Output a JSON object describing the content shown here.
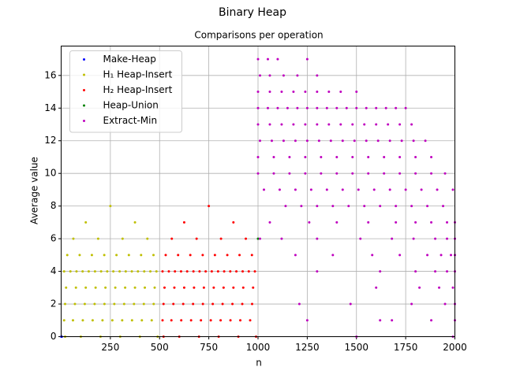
{
  "chart_data": {
    "type": "scatter",
    "title": "Binary Heap",
    "subtitle": "Comparisons per operation",
    "x_label": "n",
    "y_label": "Average value",
    "xlim": [
      0,
      2000
    ],
    "ylim": [
      0,
      17.8
    ],
    "xticks": [
      250,
      500,
      750,
      1000,
      1250,
      1500,
      1750,
      2000
    ],
    "yticks": [
      0,
      2,
      4,
      6,
      8,
      10,
      12,
      14,
      16
    ],
    "grid": true,
    "legend": "upper left",
    "series": [
      {
        "name": "Make-Heap",
        "color": "#0000ff",
        "x": [
          1,
          2,
          3
        ],
        "values": [
          0,
          0,
          0
        ]
      },
      {
        "name": "H₁ Heap-Insert",
        "color": "#bfbf00",
        "x": [
          20,
          100,
          200,
          300,
          400,
          490,
          15,
          60,
          110,
          160,
          210,
          260,
          310,
          360,
          410,
          460,
          20,
          70,
          120,
          170,
          220,
          270,
          320,
          370,
          420,
          470,
          25,
          75,
          125,
          175,
          225,
          275,
          325,
          375,
          425,
          475,
          15,
          47,
          78,
          109,
          140,
          172,
          203,
          234,
          265,
          297,
          328,
          359,
          390,
          422,
          453,
          484,
          31,
          94,
          156,
          219,
          281,
          344,
          406,
          469,
          62,
          188,
          312,
          438,
          125,
          375,
          250
        ],
        "values": [
          0,
          0,
          0,
          0,
          0,
          0,
          1,
          1,
          1,
          1,
          1,
          1,
          1,
          1,
          1,
          1,
          2,
          2,
          2,
          2,
          2,
          2,
          2,
          2,
          2,
          2,
          3,
          3,
          3,
          3,
          3,
          3,
          3,
          3,
          3,
          3,
          4,
          4,
          4,
          4,
          4,
          4,
          4,
          4,
          4,
          4,
          4,
          4,
          4,
          4,
          4,
          4,
          5,
          5,
          5,
          5,
          5,
          5,
          5,
          5,
          6,
          6,
          6,
          6,
          7,
          7,
          8
        ]
      },
      {
        "name": "H₂ Heap-Insert",
        "color": "#ff0000",
        "x": [
          520,
          600,
          700,
          800,
          900,
          990,
          515,
          560,
          610,
          660,
          710,
          760,
          810,
          860,
          910,
          960,
          520,
          570,
          620,
          670,
          720,
          770,
          820,
          870,
          920,
          970,
          525,
          575,
          625,
          675,
          725,
          775,
          825,
          875,
          925,
          975,
          515,
          547,
          578,
          609,
          640,
          672,
          703,
          734,
          765,
          797,
          828,
          859,
          890,
          922,
          953,
          984,
          531,
          594,
          656,
          719,
          781,
          844,
          906,
          969,
          562,
          688,
          812,
          938,
          625,
          875,
          750
        ],
        "values": [
          0,
          0,
          0,
          0,
          0,
          0,
          1,
          1,
          1,
          1,
          1,
          1,
          1,
          1,
          1,
          1,
          2,
          2,
          2,
          2,
          2,
          2,
          2,
          2,
          2,
          2,
          3,
          3,
          3,
          3,
          3,
          3,
          3,
          3,
          3,
          3,
          4,
          4,
          4,
          4,
          4,
          4,
          4,
          4,
          4,
          4,
          4,
          4,
          4,
          4,
          4,
          4,
          5,
          5,
          5,
          5,
          5,
          5,
          5,
          5,
          6,
          6,
          6,
          6,
          7,
          7,
          8
        ]
      },
      {
        "name": "Heap-Union",
        "color": "#008000",
        "x": [
          1000
        ],
        "values": [
          6
        ]
      },
      {
        "name": "Extract-Min",
        "color": "#bf00bf",
        "x": [
          1000,
          1050,
          1100,
          1250,
          1010,
          1060,
          1130,
          1200,
          1300,
          1000,
          1060,
          1120,
          1180,
          1240,
          1300,
          1360,
          1420,
          1500,
          1000,
          1050,
          1100,
          1150,
          1200,
          1250,
          1300,
          1350,
          1400,
          1450,
          1500,
          1550,
          1600,
          1650,
          1700,
          1750,
          1000,
          1060,
          1120,
          1180,
          1240,
          1300,
          1360,
          1420,
          1480,
          1540,
          1600,
          1660,
          1720,
          1780,
          1010,
          1070,
          1130,
          1190,
          1250,
          1310,
          1370,
          1430,
          1490,
          1550,
          1610,
          1670,
          1730,
          1790,
          1850,
          1000,
          1080,
          1160,
          1240,
          1320,
          1400,
          1480,
          1560,
          1640,
          1720,
          1800,
          1880,
          1000,
          1080,
          1160,
          1240,
          1320,
          1400,
          1480,
          1560,
          1640,
          1720,
          1800,
          1880,
          1950,
          1030,
          1110,
          1190,
          1270,
          1350,
          1430,
          1510,
          1590,
          1670,
          1750,
          1830,
          1910,
          1990,
          1140,
          1220,
          1300,
          1380,
          1460,
          1540,
          1620,
          1700,
          1780,
          1860,
          1940,
          1060,
          1260,
          1400,
          1560,
          1700,
          1800,
          1880,
          1960,
          2000,
          1010,
          1120,
          1300,
          1520,
          1680,
          1790,
          1900,
          1960,
          2000,
          1190,
          1380,
          1580,
          1720,
          1860,
          1930,
          1980,
          2000,
          1300,
          1620,
          1800,
          1900,
          1960,
          2000,
          1600,
          1820,
          1920,
          1990,
          1210,
          1470,
          1780,
          1950,
          2000,
          1250,
          1620,
          1680,
          1880,
          2000,
          1500,
          1990
        ],
        "values": [
          17,
          17,
          17,
          17,
          16,
          16,
          16,
          16,
          16,
          15,
          15,
          15,
          15,
          15,
          15,
          15,
          15,
          15,
          14,
          14,
          14,
          14,
          14,
          14,
          14,
          14,
          14,
          14,
          14,
          14,
          14,
          14,
          14,
          14,
          13,
          13,
          13,
          13,
          13,
          13,
          13,
          13,
          13,
          13,
          13,
          13,
          13,
          13,
          12,
          12,
          12,
          12,
          12,
          12,
          12,
          12,
          12,
          12,
          12,
          12,
          12,
          12,
          12,
          11,
          11,
          11,
          11,
          11,
          11,
          11,
          11,
          11,
          11,
          11,
          11,
          10,
          10,
          10,
          10,
          10,
          10,
          10,
          10,
          10,
          10,
          10,
          10,
          10,
          9,
          9,
          9,
          9,
          9,
          9,
          9,
          9,
          9,
          9,
          9,
          9,
          9,
          8,
          8,
          8,
          8,
          8,
          8,
          8,
          8,
          8,
          8,
          8,
          7,
          7,
          7,
          7,
          7,
          7,
          7,
          7,
          7,
          6,
          6,
          6,
          6,
          6,
          6,
          6,
          6,
          6,
          5,
          5,
          5,
          5,
          5,
          5,
          5,
          5,
          4,
          4,
          4,
          4,
          4,
          4,
          3,
          3,
          3,
          3,
          2,
          2,
          2,
          2,
          2,
          1,
          1,
          1,
          1,
          1,
          0,
          0
        ]
      }
    ]
  }
}
